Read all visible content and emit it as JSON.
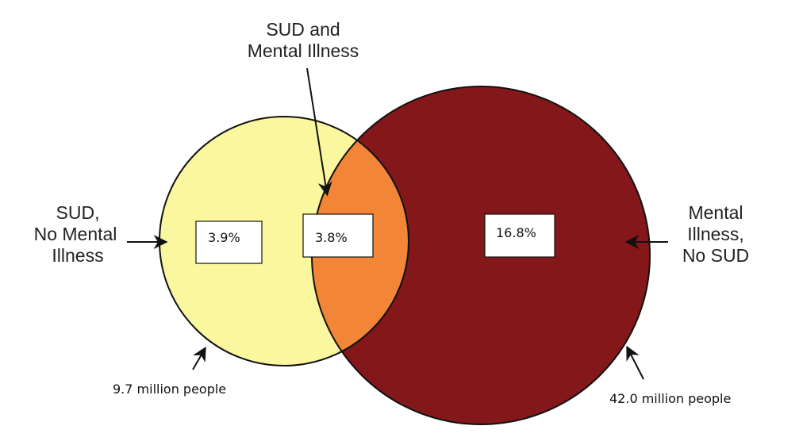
{
  "diagram": {
    "labels": {
      "overlap": [
        "SUD and",
        "Mental Illness"
      ],
      "left": [
        "SUD,",
        "No Mental",
        "Illness"
      ],
      "right": [
        "Mental",
        "Illness,",
        "No SUD"
      ]
    },
    "percentages": {
      "left": "3.9%",
      "overlap": "3.8%",
      "right": "16.8%"
    },
    "captions": {
      "left": "9.7 million people",
      "right": "42.0 million people"
    },
    "colors": {
      "left_circle": "#FBF79E",
      "right_circle": "#83171A",
      "overlap": "#F28536",
      "outline": "#111111"
    }
  }
}
